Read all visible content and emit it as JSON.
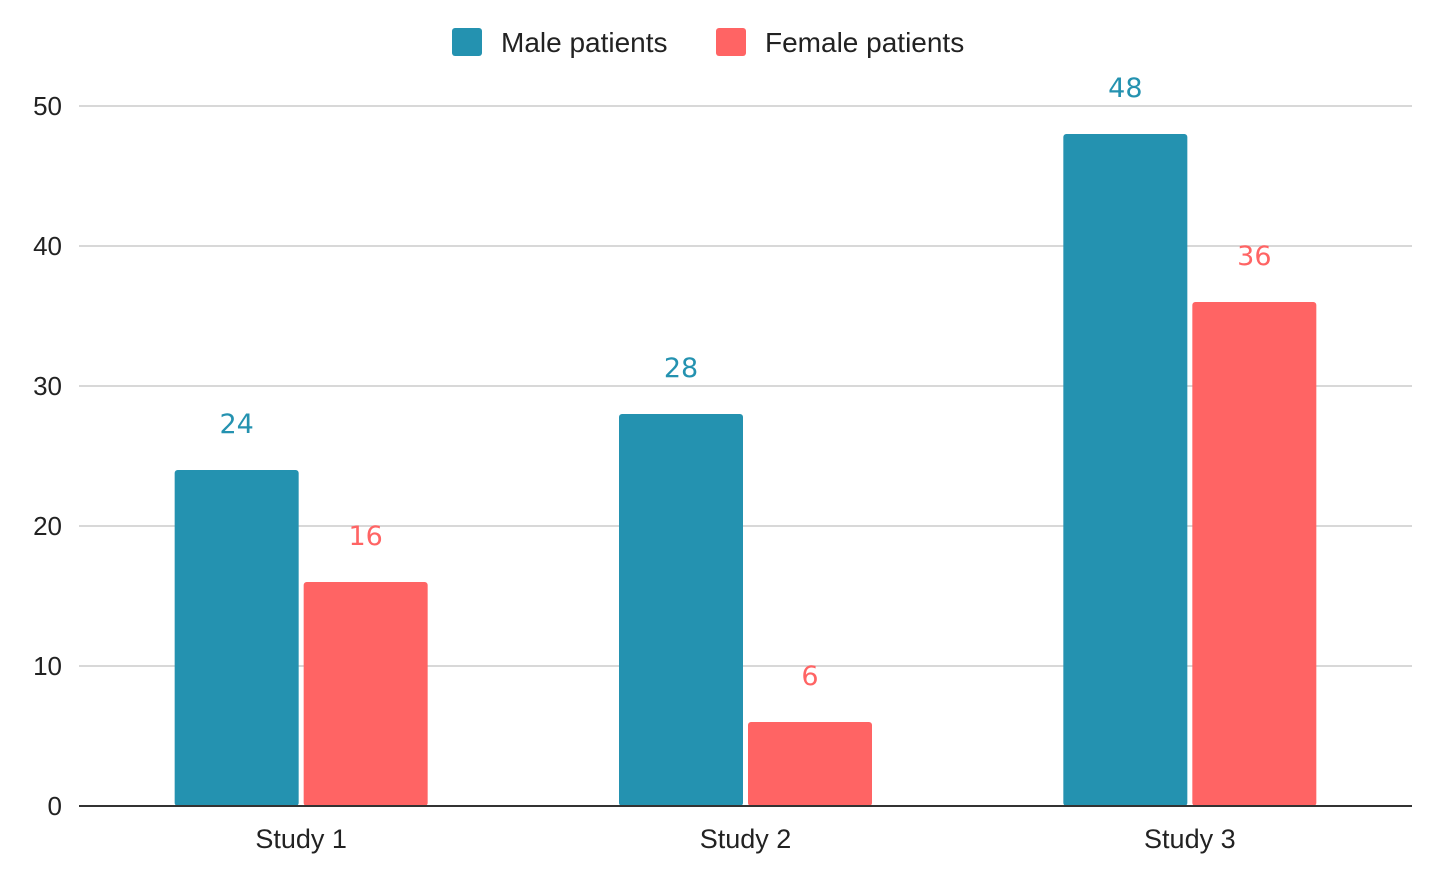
{
  "chart_data": {
    "type": "bar",
    "title": "",
    "xlabel": "",
    "ylabel": "",
    "categories": [
      "Study 1",
      "Study 2",
      "Study 3"
    ],
    "series": [
      {
        "name": "Male patients",
        "color": "#2492B0",
        "values": [
          24,
          28,
          48
        ]
      },
      {
        "name": "Female patients",
        "color": "#FF6464",
        "values": [
          16,
          6,
          36
        ]
      }
    ],
    "ylim": [
      0,
      50
    ],
    "yticks": [
      0,
      10,
      20,
      30,
      40,
      50
    ],
    "grid": true,
    "legend_position": "top-center",
    "data_labels": true
  }
}
